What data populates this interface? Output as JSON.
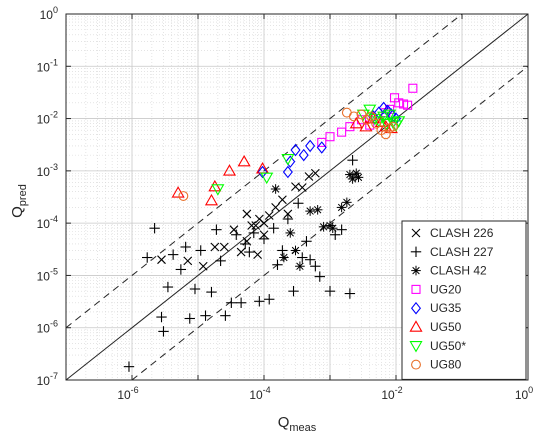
{
  "chart_data": {
    "type": "scatter",
    "title": "",
    "x_scale": "log",
    "y_scale": "log",
    "xlim": [
      1e-07,
      1
    ],
    "ylim": [
      1e-07,
      1
    ],
    "grid": true,
    "legend_placement": "bottom-right",
    "xlabel": {
      "main": "Q",
      "sub": "meas"
    },
    "ylabel": {
      "main": "Q",
      "sub": "pred"
    },
    "x_ticks": [
      {
        "value": 1e-06,
        "base": "10",
        "exp": "-6"
      },
      {
        "value": 0.0001,
        "base": "10",
        "exp": "-4"
      },
      {
        "value": 0.01,
        "base": "10",
        "exp": "-2"
      },
      {
        "value": 1,
        "base": "10",
        "exp": "0"
      }
    ],
    "y_ticks": [
      {
        "value": 1e-07,
        "base": "10",
        "exp": "-7"
      },
      {
        "value": 1e-06,
        "base": "10",
        "exp": "-6"
      },
      {
        "value": 1e-05,
        "base": "10",
        "exp": "-5"
      },
      {
        "value": 0.0001,
        "base": "10",
        "exp": "-4"
      },
      {
        "value": 0.001,
        "base": "10",
        "exp": "-3"
      },
      {
        "value": 0.01,
        "base": "10",
        "exp": "-2"
      },
      {
        "value": 0.1,
        "base": "10",
        "exp": "-1"
      },
      {
        "value": 1,
        "base": "10",
        "exp": "0"
      }
    ],
    "reference_lines": [
      {
        "style": "solid",
        "factor": 1
      },
      {
        "style": "dashed",
        "factor": 10
      },
      {
        "style": "dashed",
        "factor": 0.1
      }
    ],
    "series": [
      {
        "name": "CLASH 226",
        "marker": "x",
        "color": "#000000",
        "points": [
          [
            2.8e-06,
            2e-05
          ],
          [
            7e-06,
            1.9e-05
          ],
          [
            1.2e-05,
            1.5e-05
          ],
          [
            1.8e-05,
            3.5e-05
          ],
          [
            2.5e-05,
            3.5e-05
          ],
          [
            3.5e-05,
            7.5e-05
          ],
          [
            4.5e-05,
            2.8e-05
          ],
          [
            5.5e-05,
            4.5e-05
          ],
          [
            6.5e-05,
            9e-05
          ],
          [
            7.5e-05,
            9e-05
          ],
          [
            8.5e-05,
            0.00012
          ],
          [
            0.0001,
            0.0001
          ],
          [
            0.00012,
            0.00014
          ],
          [
            0.00015,
            0.0002
          ],
          [
            0.00019,
            0.00028
          ],
          [
            0.00023,
            0.00015
          ],
          [
            0.0003,
            0.0005
          ],
          [
            0.00038,
            0.00048
          ],
          [
            0.00048,
            0.00078
          ],
          [
            0.0006,
            0.0009
          ],
          [
            5.5e-05,
            0.00015
          ],
          [
            0.0001,
            6e-05
          ],
          [
            8e-05,
            2.5e-05
          ]
        ]
      },
      {
        "name": "CLASH 227",
        "marker": "+",
        "color": "#000000",
        "points": [
          [
            9e-07,
            1.8e-07
          ],
          [
            1.7e-06,
            2.2e-05
          ],
          [
            2.2e-06,
            8e-05
          ],
          [
            2.8e-06,
            1.6e-06
          ],
          [
            3e-06,
            8.5e-07
          ],
          [
            3.5e-06,
            6e-06
          ],
          [
            4.2e-06,
            2.5e-05
          ],
          [
            5.5e-06,
            1.3e-05
          ],
          [
            6.5e-06,
            3.5e-05
          ],
          [
            7.5e-06,
            1.5e-06
          ],
          [
            9e-06,
            5.5e-06
          ],
          [
            1.1e-05,
            3e-05
          ],
          [
            1.3e-05,
            1.7e-06
          ],
          [
            1.6e-05,
            4.8e-06
          ],
          [
            1.9e-05,
            7.5e-05
          ],
          [
            2.2e-05,
            1.9e-05
          ],
          [
            2.6e-05,
            1.7e-06
          ],
          [
            3.2e-05,
            3e-06
          ],
          [
            3.8e-05,
            6e-05
          ],
          [
            4.5e-05,
            3e-06
          ],
          [
            5.2e-05,
            4e-05
          ],
          [
            6e-05,
            2.8e-05
          ],
          [
            7e-05,
            6.5e-05
          ],
          [
            8.5e-05,
            3.2e-06
          ],
          [
            0.0001,
            5e-05
          ],
          [
            0.00012,
            3.5e-06
          ],
          [
            0.00014,
            8e-05
          ],
          [
            0.00016,
            1.6e-05
          ],
          [
            0.00019,
            3e-05
          ],
          [
            0.00023,
            0.00012
          ],
          [
            0.00028,
            5e-06
          ],
          [
            0.00033,
            0.00024
          ],
          [
            0.00038,
            2.2e-05
          ],
          [
            0.00044,
            4.5e-05
          ],
          [
            0.0005,
            2e-05
          ],
          [
            0.0006,
            1.5e-05
          ],
          [
            0.0007,
            9.5e-06
          ],
          [
            0.001,
            5e-06
          ],
          [
            0.0012,
            6e-05
          ],
          [
            0.0015,
            7.5e-05
          ],
          [
            0.002,
            4.5e-06
          ],
          [
            0.0022,
            0.0016
          ]
        ]
      },
      {
        "name": "CLASH 42",
        "marker": "asterisk",
        "color": "#000000",
        "points": [
          [
            0.00015,
            0.00045
          ],
          [
            0.0002,
            2.2e-05
          ],
          [
            0.00025,
            6.5e-05
          ],
          [
            0.0003,
            3e-05
          ],
          [
            0.00035,
            1.5e-05
          ],
          [
            0.0005,
            0.00017
          ],
          [
            0.00065,
            0.00018
          ],
          [
            0.0008,
            8.5e-05
          ],
          [
            0.001,
            9e-05
          ],
          [
            0.0011,
            8e-05
          ],
          [
            0.0015,
            0.0002
          ],
          [
            0.0018,
            0.00025
          ],
          [
            0.0022,
            0.0007
          ],
          [
            0.0025,
            0.0009
          ],
          [
            0.0027,
            0.00075
          ],
          [
            0.002,
            0.00085
          ]
        ]
      },
      {
        "name": "UG20",
        "marker": "square",
        "color": "#ff00ff",
        "points": [
          [
            0.001,
            0.0045
          ],
          [
            0.0015,
            0.0055
          ],
          [
            0.002,
            0.007
          ],
          [
            0.003,
            0.0095
          ],
          [
            0.004,
            0.0075
          ],
          [
            0.005,
            0.01
          ],
          [
            0.007,
            0.013
          ],
          [
            0.008,
            0.015
          ],
          [
            0.0095,
            0.025
          ],
          [
            0.011,
            0.02
          ],
          [
            0.013,
            0.019
          ],
          [
            0.015,
            0.018
          ],
          [
            0.018,
            0.038
          ],
          [
            0.00075,
            0.0035
          ]
        ]
      },
      {
        "name": "UG35",
        "marker": "diamond",
        "color": "#0000ff",
        "points": [
          [
            9.5e-05,
            0.00095
          ],
          [
            0.00023,
            0.00095
          ],
          [
            0.00025,
            0.0015
          ],
          [
            0.0003,
            0.0025
          ],
          [
            0.0004,
            0.002
          ],
          [
            0.0005,
            0.003
          ],
          [
            0.00075,
            0.0028
          ],
          [
            0.0045,
            0.011
          ],
          [
            0.0055,
            0.013
          ],
          [
            0.0065,
            0.016
          ],
          [
            0.0075,
            0.014
          ],
          [
            0.0085,
            0.012
          ],
          [
            0.01,
            0.01
          ]
        ]
      },
      {
        "name": "UG50",
        "marker": "triangle-up",
        "color": "#ff0000",
        "points": [
          [
            5e-06,
            0.00038
          ],
          [
            1.6e-05,
            0.00027
          ],
          [
            1.8e-05,
            0.0005
          ],
          [
            3e-05,
            0.001
          ],
          [
            5e-05,
            0.0015
          ],
          [
            9.5e-05,
            0.0011
          ],
          [
            0.0025,
            0.008
          ],
          [
            0.0035,
            0.007
          ],
          [
            0.0045,
            0.01
          ],
          [
            0.006,
            0.0085
          ],
          [
            0.007,
            0.007
          ],
          [
            0.0085,
            0.0065
          ]
        ]
      },
      {
        "name": "UG50*",
        "marker": "triangle-down",
        "color": "#00ff00",
        "points": [
          [
            2e-05,
            0.00045
          ],
          [
            0.00011,
            0.00075
          ],
          [
            0.00023,
            0.0017
          ],
          [
            0.0032,
            0.012
          ],
          [
            0.004,
            0.015
          ],
          [
            0.0048,
            0.01
          ],
          [
            0.0055,
            0.009
          ],
          [
            0.0065,
            0.011
          ],
          [
            0.0072,
            0.008
          ],
          [
            0.008,
            0.012
          ],
          [
            0.009,
            0.0085
          ],
          [
            0.01,
            0.0075
          ],
          [
            0.011,
            0.009
          ]
        ]
      },
      {
        "name": "UG80",
        "marker": "circle",
        "color": "#e8702a",
        "points": [
          [
            6e-06,
            0.00033
          ],
          [
            0.0018,
            0.013
          ],
          [
            0.0023,
            0.011
          ],
          [
            0.003,
            0.012
          ],
          [
            0.0036,
            0.0095
          ],
          [
            0.0042,
            0.011
          ],
          [
            0.005,
            0.008
          ],
          [
            0.006,
            0.006
          ],
          [
            0.007,
            0.005
          ],
          [
            0.008,
            0.0065
          ],
          [
            0.009,
            0.007
          ]
        ]
      }
    ]
  }
}
